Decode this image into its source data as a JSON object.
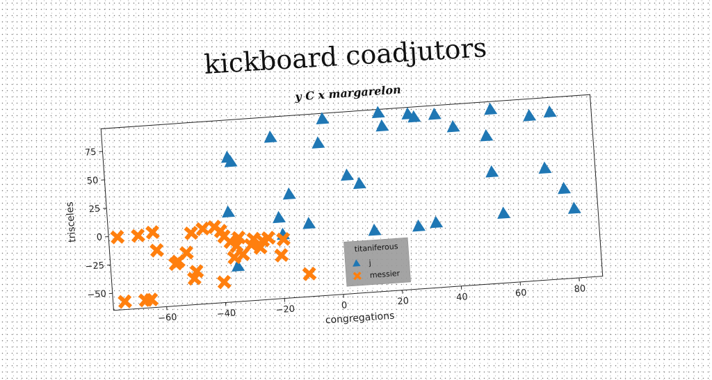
{
  "chart_data": {
    "type": "scatter",
    "title": "kickboard coadjutors",
    "subtitle": "y C x margarelon",
    "xlabel": "congregations",
    "ylabel": "trisceles",
    "xlim": [
      -78,
      88
    ],
    "ylim": [
      -65,
      95
    ],
    "xticks": [
      -60,
      -40,
      -20,
      0,
      20,
      40,
      60,
      80
    ],
    "yticks": [
      -50,
      -25,
      0,
      25,
      50,
      75
    ],
    "grid": false,
    "legend": {
      "title": "titaniferous",
      "placement": "lower-center",
      "entries": [
        "j",
        "messier"
      ]
    },
    "colors": {
      "j": "#1f77b4",
      "messier": "#ff7f0e"
    },
    "series": [
      {
        "name": "j",
        "marker": "triangle",
        "x": [
          -3,
          16,
          17,
          26,
          28,
          35,
          41,
          52,
          54,
          67,
          74,
          -21,
          -5,
          -36,
          -35,
          -37,
          -16,
          -20,
          -19,
          4,
          8,
          -10,
          12,
          27,
          33,
          53,
          56,
          71,
          77,
          80,
          -35
        ],
        "y": [
          90,
          92,
          80,
          89,
          86,
          87,
          75,
          65,
          88,
          80,
          82,
          77,
          69,
          62,
          58,
          14,
          26,
          6,
          -9,
          39,
          31,
          -1,
          -11,
          -10,
          -8,
          33,
          -4,
          33,
          14,
          -4,
          -34
        ]
      },
      {
        "name": "messier",
        "marker": "x",
        "x": [
          -75,
          -68,
          -63,
          -62,
          -56,
          -55,
          -52,
          -50,
          -49,
          -46,
          -42,
          -40,
          -39,
          -37,
          -36,
          -35,
          -34,
          -33,
          -30,
          -29,
          -27,
          -26,
          -24,
          -20,
          -19,
          -11,
          -50,
          -40,
          -74,
          -67,
          -65
        ],
        "y": [
          -1,
          -1,
          1,
          -15,
          -28,
          -26,
          -19,
          -2,
          -36,
          1,
          2,
          -2,
          -7,
          -12,
          -26,
          -16,
          -9,
          -24,
          -16,
          -11,
          -19,
          -13,
          -11,
          -27,
          -13,
          -45,
          -42,
          -47,
          -58,
          -58,
          -58
        ]
      }
    ]
  }
}
